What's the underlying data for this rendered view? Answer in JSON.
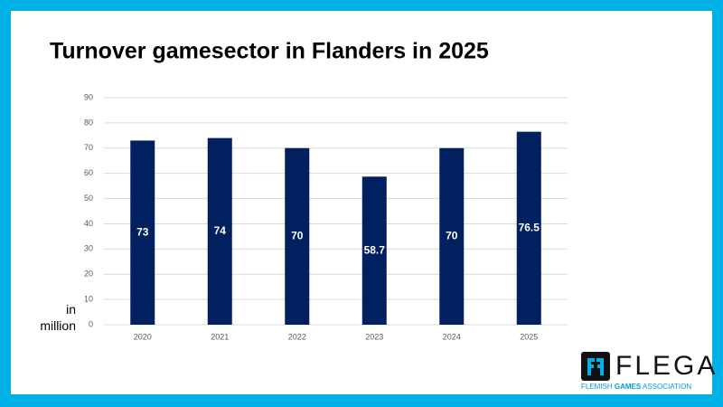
{
  "chart_data": {
    "type": "bar",
    "title": "Turnover gamesector in Flanders in 2025",
    "y_label": "in million",
    "categories": [
      "2020",
      "2021",
      "2022",
      "2023",
      "2024",
      "2025"
    ],
    "values": [
      73,
      74,
      70,
      58.7,
      70,
      76.5
    ],
    "color": "#002060",
    "ylim": [
      0,
      90
    ],
    "yticks": [
      0,
      10,
      20,
      30,
      40,
      50,
      60,
      70,
      80,
      90
    ],
    "grid": true
  },
  "logo": {
    "name": "FLEGA",
    "tagline": [
      "FLEMISH",
      "GAMES",
      "ASSOCIATION"
    ]
  }
}
